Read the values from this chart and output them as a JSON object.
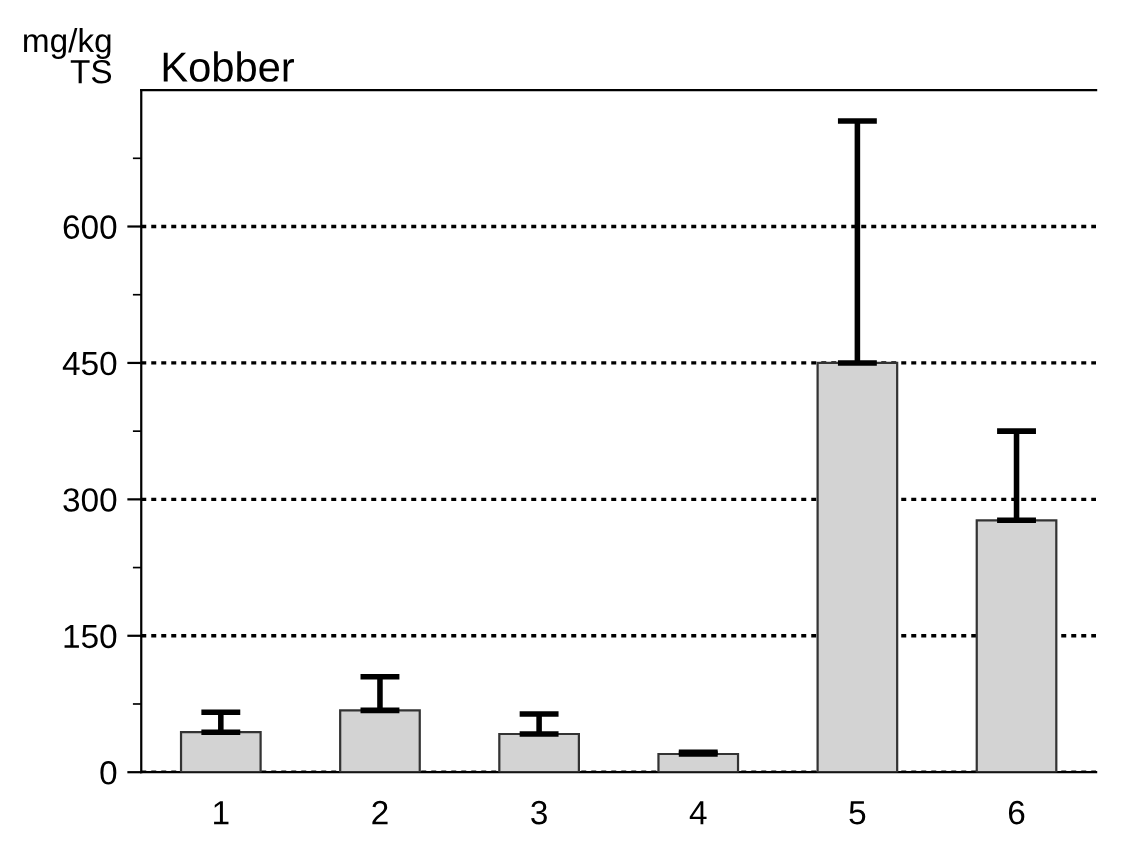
{
  "chart_data": {
    "type": "bar",
    "title": "Kobber",
    "ylabel": "mg/kg\nTS",
    "categories": [
      "1",
      "2",
      "3",
      "4",
      "5",
      "6"
    ],
    "values": [
      44,
      68,
      42,
      20,
      450,
      277
    ],
    "errors": [
      [
        44,
        66
      ],
      [
        68,
        105
      ],
      [
        42,
        64
      ],
      [
        20,
        22
      ],
      [
        450,
        716
      ],
      [
        277,
        375
      ]
    ],
    "color": "#d3d3d3",
    "ylim": [
      0,
      750
    ],
    "yticks": [
      0,
      150,
      300,
      450,
      600
    ],
    "grid": "y",
    "line_style": "dotted"
  }
}
